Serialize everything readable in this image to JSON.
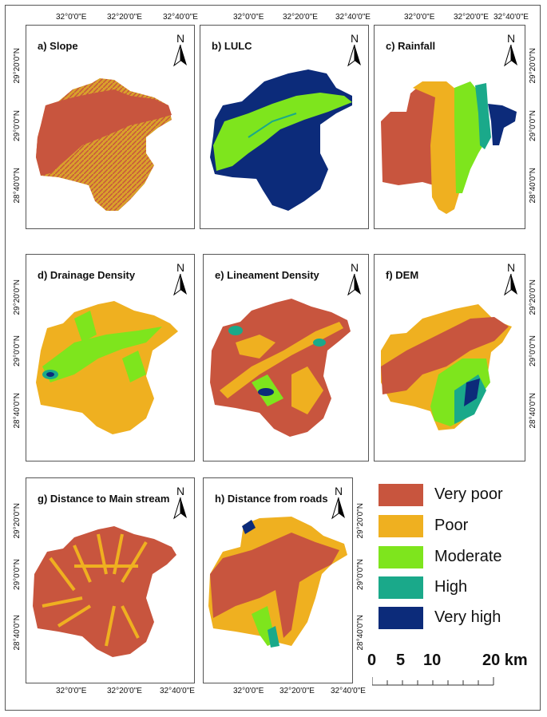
{
  "panels": [
    {
      "id": "a",
      "title": "a)  Slope"
    },
    {
      "id": "b",
      "title": "b)  LULC"
    },
    {
      "id": "c",
      "title": "c)  Rainfall"
    },
    {
      "id": "d",
      "title": "d)  Drainage Density"
    },
    {
      "id": "e",
      "title": "e)  Lineament Density"
    },
    {
      "id": "f",
      "title": "f)  DEM"
    },
    {
      "id": "g",
      "title": "g)  Distance to Main stream"
    },
    {
      "id": "h",
      "title": "h)  Distance from roads"
    }
  ],
  "north_label": "N",
  "lon_ticks": [
    "32°0'0\"E",
    "32°20'0\"E",
    "32°40'0\"E"
  ],
  "lat_ticks": [
    "29°20'0\"N",
    "29°0'0\"N",
    "28°40'0\"N"
  ],
  "legend": [
    {
      "label": "Very poor",
      "color": "#c8553e"
    },
    {
      "label": "Poor",
      "color": "#efb020"
    },
    {
      "label": "Moderate",
      "color": "#7ee51d"
    },
    {
      "label": "High",
      "color": "#1aa98a"
    },
    {
      "label": "Very high",
      "color": "#0c2b7a"
    }
  ],
  "scale_bar": {
    "labels": [
      "0",
      "5",
      "10",
      "20 km"
    ]
  }
}
